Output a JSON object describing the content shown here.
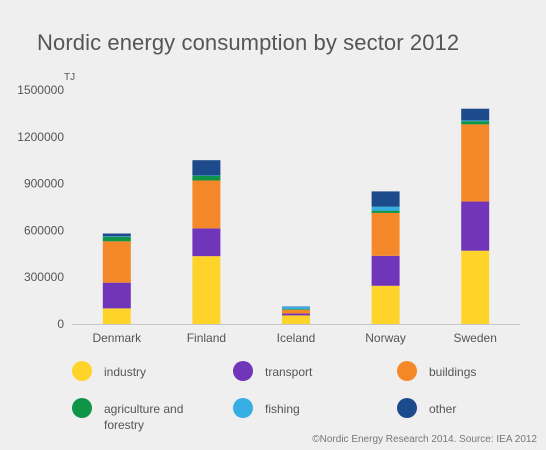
{
  "title": "Nordic energy consumption by sector 2012",
  "credit": "©Nordic Energy Research 2014. Source: IEA 2012",
  "chart_data": {
    "type": "bar",
    "stacked": true,
    "title": "Nordic energy consumption by sector 2012",
    "ylabel": "TJ",
    "xlabel": "",
    "ylim": [
      0,
      1500000
    ],
    "yticks": [
      0,
      300000,
      600000,
      900000,
      1200000,
      1500000
    ],
    "ytick_labels": [
      "0",
      "300000",
      "600000",
      "900000",
      "1200000",
      "1500000"
    ],
    "categories": [
      "Denmark",
      "Finland",
      "Iceland",
      "Norway",
      "Sweden"
    ],
    "grid": false,
    "legend_position": "bottom",
    "series": [
      {
        "name": "industry",
        "color": "#ffd42a",
        "values": [
          100000,
          435000,
          55000,
          245000,
          470000
        ]
      },
      {
        "name": "transport",
        "color": "#7035b8",
        "values": [
          165000,
          178000,
          12000,
          192000,
          315000
        ]
      },
      {
        "name": "buildings",
        "color": "#f5892a",
        "values": [
          265000,
          307000,
          25000,
          275000,
          495000
        ]
      },
      {
        "name": "agriculture and forestry",
        "color": "#0f9448",
        "values": [
          28000,
          30000,
          4000,
          15000,
          20000
        ]
      },
      {
        "name": "fishing",
        "color": "#35aee4",
        "values": [
          4000,
          2000,
          15000,
          25000,
          5000
        ]
      },
      {
        "name": "other",
        "color": "#1c4a8a",
        "values": [
          18000,
          98000,
          2000,
          98000,
          75000
        ]
      }
    ]
  }
}
